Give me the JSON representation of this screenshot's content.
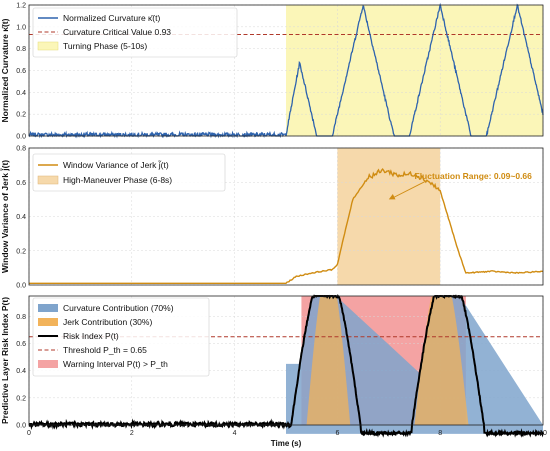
{
  "chart_data": [
    {
      "type": "line",
      "ylabel": "Normalized Curvature κ̄(t)",
      "xlim": [
        0,
        10
      ],
      "ylim": [
        0,
        1.2
      ],
      "yticks": [
        "0.0",
        "0.2",
        "0.4",
        "0.6",
        "0.8",
        "1.0",
        "1.2"
      ],
      "grid": true,
      "legend_position": "top-left",
      "series": [
        {
          "name": "Normalized Curvature κ̄(t)",
          "color": "#2e63ad",
          "description_points": {
            "x": [
              0,
              5,
              5.3,
              5.75,
              6.5,
              7.25,
              8.0,
              8.75,
              9.3
            ],
            "y": [
              0.01,
              0.01,
              0.5,
              1.2,
              0.0,
              1.2,
              0.0,
              1.2,
              0.4
            ]
          }
        },
        {
          "name": "Curvature Critical Value 0.93",
          "color": "#b0392b",
          "y": 0.93
        }
      ],
      "bands": [
        {
          "name": "Turning Phase (5-10s)",
          "x": [
            5,
            10
          ],
          "color": "#fbf6b8"
        }
      ]
    },
    {
      "type": "line",
      "ylabel": "Window Variance of Jerk j̃(t)",
      "xlim": [
        0,
        10
      ],
      "ylim": [
        0,
        0.8
      ],
      "yticks": [
        "0.0",
        "0.2",
        "0.4",
        "0.6",
        "0.8"
      ],
      "grid": true,
      "legend_position": "top-left",
      "series": [
        {
          "name": "Window Variance of Jerk j̃(t)",
          "color": "#d08c12",
          "points": {
            "x": [
              0,
              5.0,
              5.2,
              5.5,
              5.9,
              6.0,
              6.1,
              6.3,
              6.6,
              6.9,
              7.2,
              7.5,
              7.8,
              8.0,
              8.1,
              8.35,
              8.5,
              9.0,
              9.5,
              10.0
            ],
            "y": [
              0.01,
              0.01,
              0.05,
              0.07,
              0.09,
              0.12,
              0.25,
              0.5,
              0.63,
              0.67,
              0.64,
              0.65,
              0.6,
              0.55,
              0.45,
              0.2,
              0.07,
              0.08,
              0.07,
              0.08
            ]
          }
        }
      ],
      "bands": [
        {
          "name": "High-Maneuver Phase (6-8s)",
          "x": [
            6,
            8
          ],
          "color": "#f6d9ab"
        }
      ],
      "annotation": {
        "text": "Fluctuation Range: 0.09~0.66",
        "arrow_to": [
          7.0,
          0.5
        ],
        "text_at": [
          7.5,
          0.62
        ]
      }
    },
    {
      "type": "area",
      "ylabel": "Predictive Layer Risk Index P(t)",
      "xlabel": "Time (s)",
      "xlim": [
        0,
        10
      ],
      "ylim": [
        0,
        0.95
      ],
      "xticks": [
        "0",
        "2",
        "4",
        "6",
        "8",
        "10"
      ],
      "yticks": [
        "0.0",
        "0.2",
        "0.4",
        "0.6",
        "0.8"
      ],
      "grid": true,
      "legend_position": "top-left",
      "series": [
        {
          "name": "Curvature Contribution (70%)",
          "color": "#7fa4cc"
        },
        {
          "name": "Jerk Contribution (30%)",
          "color": "#f2b35a"
        },
        {
          "name": "Risk Index P(t)",
          "color": "#000000",
          "description_points": {
            "x": [
              0,
              5,
              5.3,
              5.55,
              5.95,
              6.35,
              7.0,
              7.4,
              7.7,
              8.1,
              8.5,
              8.8,
              10
            ],
            "y": [
              0.0,
              0.0,
              0.45,
              0.9,
              0.9,
              0.0,
              0.0,
              0.3,
              0.9,
              0.9,
              0.3,
              0.0,
              0.0
            ]
          }
        },
        {
          "name": "Threshold P_th = 0.65",
          "color": "#b0392b",
          "y": 0.65
        }
      ],
      "bands": [
        {
          "name": "Warning Interval P(t) > P_th",
          "x": [
            5.3,
            8.5
          ],
          "color": "#f4a3a3"
        }
      ]
    }
  ]
}
